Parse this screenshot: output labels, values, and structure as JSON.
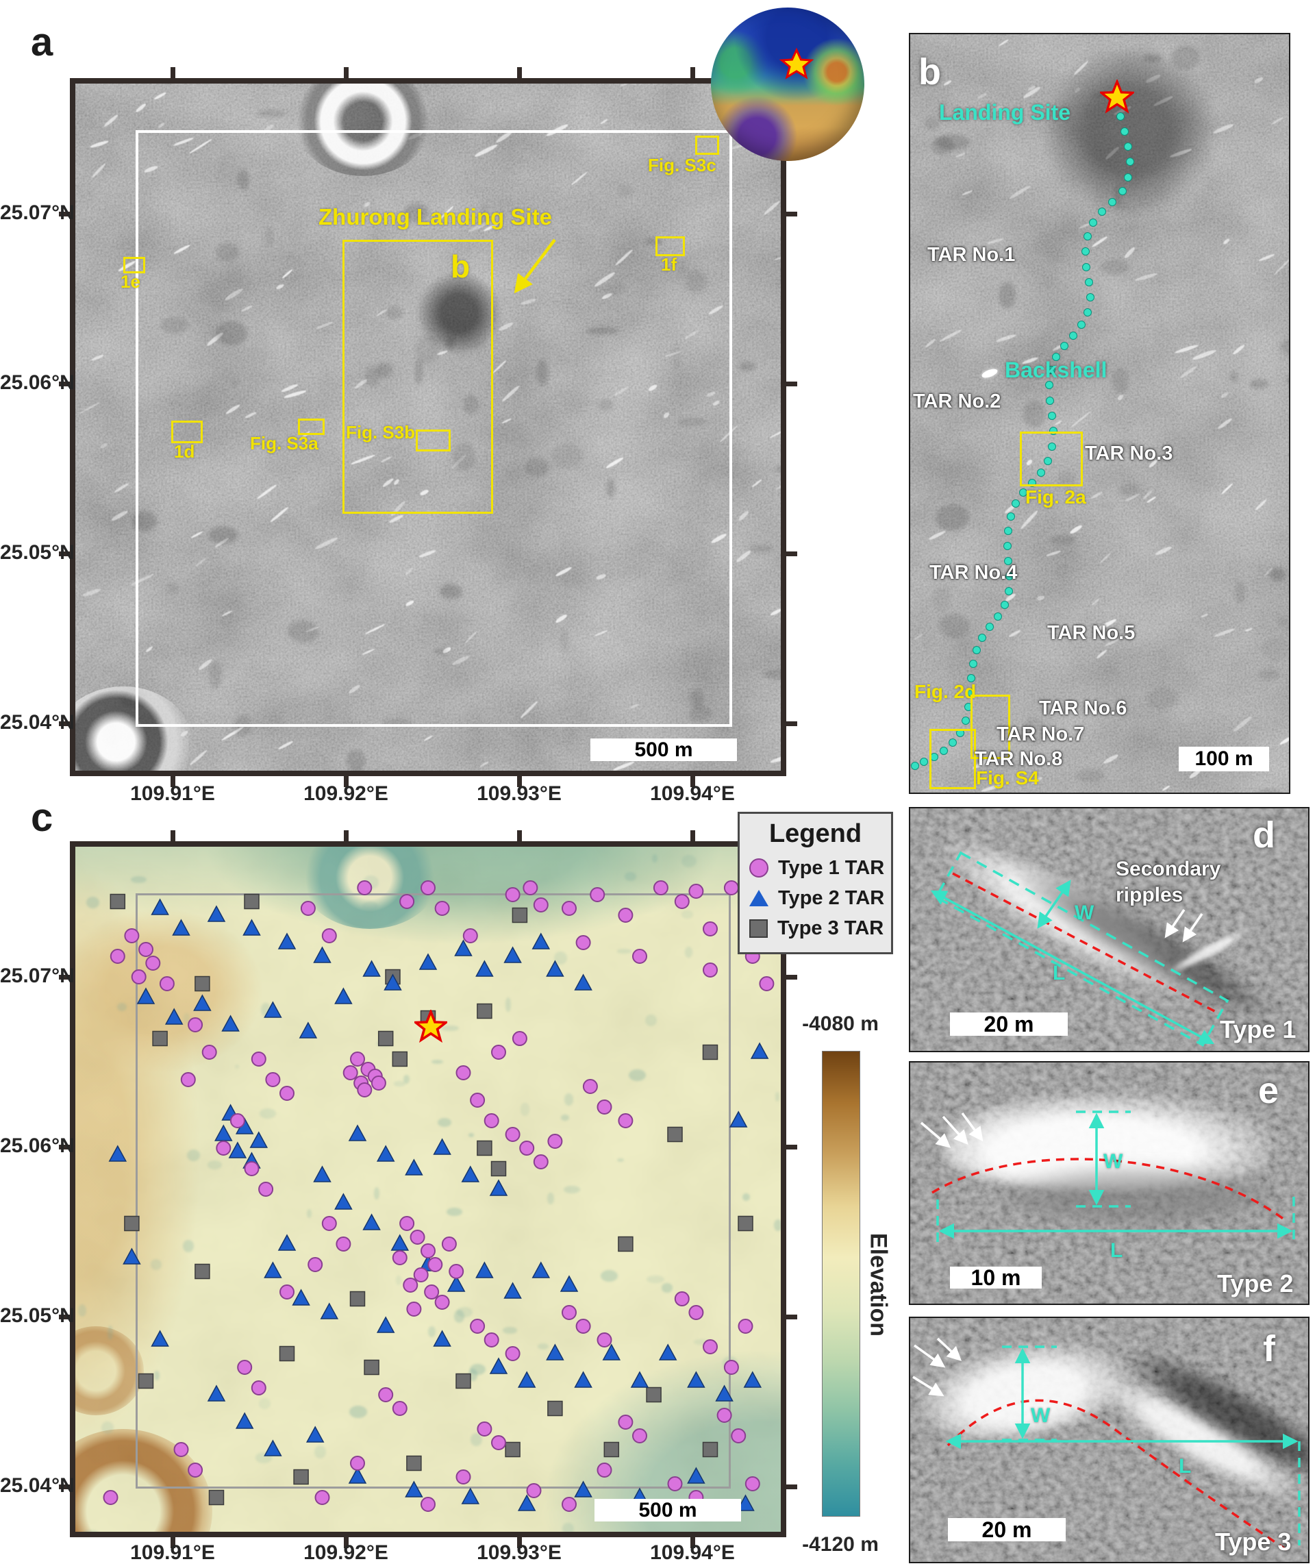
{
  "figure": {
    "description_note": ""
  },
  "panel_a": {
    "label": "a",
    "lat_ticks": [
      "25.07°N",
      "25.06°N",
      "25.05°N",
      "25.04°N"
    ],
    "lon_ticks": [
      "109.91°E",
      "109.92°E",
      "109.93°E",
      "109.94°E"
    ],
    "annotation": "Zhurong Landing Site",
    "scale_bar": "500 m",
    "boxes": {
      "b": "b",
      "e1": "1e",
      "d1": "1d",
      "s3a": "Fig. S3a",
      "s3b": "Fig. S3b",
      "s3c": "Fig. S3c",
      "f1": "1f"
    }
  },
  "panel_b": {
    "label": "b",
    "landing_site": "Landing Site",
    "backshell": "Backshell",
    "tars": [
      "TAR No.1",
      "TAR No.2",
      "TAR No.3",
      "TAR No.4",
      "TAR No.5",
      "TAR No.6",
      "TAR No.7",
      "TAR No.8"
    ],
    "fig2a": "Fig. 2a",
    "fig2d": "Fig. 2d",
    "figs4": "Fig. S4",
    "scale_bar": "100 m",
    "traverse": [
      [
        307,
        120
      ],
      [
        313,
        142
      ],
      [
        318,
        164
      ],
      [
        321,
        186
      ],
      [
        318,
        209
      ],
      [
        310,
        229
      ],
      [
        295,
        245
      ],
      [
        280,
        259
      ],
      [
        267,
        275
      ],
      [
        259,
        295
      ],
      [
        256,
        317
      ],
      [
        257,
        340
      ],
      [
        261,
        362
      ],
      [
        263,
        384
      ],
      [
        259,
        406
      ],
      [
        250,
        424
      ],
      [
        238,
        440
      ],
      [
        225,
        455
      ],
      [
        213,
        471
      ],
      [
        206,
        490
      ],
      [
        203,
        512
      ],
      [
        204,
        535
      ],
      [
        207,
        557
      ],
      [
        209,
        579
      ],
      [
        207,
        602
      ],
      [
        201,
        623
      ],
      [
        191,
        640
      ],
      [
        178,
        655
      ],
      [
        165,
        669
      ],
      [
        154,
        685
      ],
      [
        147,
        704
      ],
      [
        143,
        725
      ],
      [
        142,
        747
      ],
      [
        143,
        769
      ],
      [
        145,
        791
      ],
      [
        144,
        813
      ],
      [
        138,
        833
      ],
      [
        128,
        850
      ],
      [
        116,
        865
      ],
      [
        105,
        881
      ],
      [
        97,
        899
      ],
      [
        92,
        919
      ],
      [
        89,
        940
      ],
      [
        87,
        961
      ],
      [
        85,
        982
      ],
      [
        81,
        1002
      ],
      [
        73,
        1020
      ],
      [
        62,
        1034
      ],
      [
        49,
        1046
      ],
      [
        35,
        1055
      ],
      [
        20,
        1062
      ],
      [
        7,
        1068
      ]
    ]
  },
  "panel_c": {
    "label": "c",
    "lat_ticks": [
      "25.07°N",
      "25.06°N",
      "25.05°N",
      "25.04°N"
    ],
    "lon_ticks": [
      "109.91°E",
      "109.92°E",
      "109.93°E",
      "109.94°E"
    ],
    "scale_bar": "500 m",
    "legend": {
      "title": "Legend",
      "items": [
        {
          "label": "Type 1 TAR",
          "marker": "circle-icon",
          "color": "#d973dd"
        },
        {
          "label": "Type 2 TAR",
          "marker": "triangle-icon",
          "color": "#1e5ecc"
        },
        {
          "label": "Type 3 TAR",
          "marker": "square-icon",
          "color": "#6e6e6e"
        }
      ]
    },
    "colorbar": {
      "top": "-4080 m",
      "bottom": "-4120 m",
      "label": "Elevation",
      "stops": [
        "#6f4212",
        "#a9742f",
        "#c9a05c",
        "#e8d495",
        "#f2ecbc",
        "#dfe6b8",
        "#bcd7ae",
        "#8cc3a6",
        "#57a9a2",
        "#2f8fa0"
      ]
    },
    "markers": {
      "type1": [
        [
          62,
          7
        ],
        [
          64.5,
          6
        ],
        [
          66,
          8.5
        ],
        [
          70,
          9
        ],
        [
          74,
          7
        ],
        [
          78,
          10
        ],
        [
          83,
          6
        ],
        [
          86,
          8
        ],
        [
          88,
          6.5
        ],
        [
          90,
          12
        ],
        [
          93,
          6
        ],
        [
          95,
          9
        ],
        [
          97,
          7
        ],
        [
          72,
          14
        ],
        [
          80,
          16
        ],
        [
          90,
          18
        ],
        [
          96,
          16
        ],
        [
          98,
          20
        ],
        [
          33,
          9
        ],
        [
          36,
          13
        ],
        [
          47,
          8
        ],
        [
          50,
          6
        ],
        [
          52,
          9
        ],
        [
          56,
          13
        ],
        [
          41,
          6
        ],
        [
          8,
          13
        ],
        [
          10,
          15
        ],
        [
          11,
          17
        ],
        [
          9,
          19
        ],
        [
          13,
          20
        ],
        [
          6,
          16
        ],
        [
          17,
          26
        ],
        [
          19,
          30
        ],
        [
          16,
          34
        ],
        [
          26,
          31
        ],
        [
          28,
          34
        ],
        [
          30,
          36
        ],
        [
          23,
          40
        ],
        [
          21,
          44
        ],
        [
          25,
          47
        ],
        [
          27,
          50
        ],
        [
          40,
          31
        ],
        [
          41.5,
          32.5
        ],
        [
          42.5,
          33.5
        ],
        [
          40.5,
          34.5
        ],
        [
          39,
          33
        ],
        [
          41,
          35.5
        ],
        [
          43,
          34.5
        ],
        [
          55,
          33
        ],
        [
          57,
          37
        ],
        [
          59,
          40
        ],
        [
          62,
          42
        ],
        [
          64,
          44
        ],
        [
          66,
          46
        ],
        [
          68,
          43
        ],
        [
          73,
          35
        ],
        [
          75,
          38
        ],
        [
          78,
          40
        ],
        [
          60,
          30
        ],
        [
          63,
          28
        ],
        [
          47,
          55
        ],
        [
          48.5,
          57
        ],
        [
          50,
          59
        ],
        [
          51,
          61
        ],
        [
          49,
          62.5
        ],
        [
          47.5,
          64
        ],
        [
          50.5,
          65
        ],
        [
          52,
          66.5
        ],
        [
          48,
          67.5
        ],
        [
          46,
          60
        ],
        [
          53,
          58
        ],
        [
          54,
          62
        ],
        [
          36,
          55
        ],
        [
          38,
          58
        ],
        [
          34,
          61
        ],
        [
          30,
          65
        ],
        [
          57,
          70
        ],
        [
          59,
          72
        ],
        [
          62,
          74
        ],
        [
          70,
          68
        ],
        [
          72,
          70
        ],
        [
          75,
          72
        ],
        [
          86,
          66
        ],
        [
          88,
          68
        ],
        [
          90,
          73
        ],
        [
          93,
          76
        ],
        [
          95,
          70
        ],
        [
          24,
          76
        ],
        [
          26,
          79
        ],
        [
          44,
          80
        ],
        [
          46,
          82
        ],
        [
          58,
          85
        ],
        [
          60,
          87
        ],
        [
          78,
          84
        ],
        [
          80,
          86
        ],
        [
          92,
          83
        ],
        [
          94,
          86
        ],
        [
          40,
          90
        ],
        [
          55,
          92
        ],
        [
          65,
          94
        ],
        [
          75,
          91
        ],
        [
          85,
          93
        ],
        [
          15,
          88
        ],
        [
          17,
          91
        ],
        [
          5,
          95
        ],
        [
          35,
          95
        ],
        [
          50,
          96
        ],
        [
          70,
          96
        ],
        [
          88,
          95
        ],
        [
          96,
          93
        ]
      ],
      "type2": [
        [
          12,
          9
        ],
        [
          15,
          12
        ],
        [
          20,
          10
        ],
        [
          25,
          12
        ],
        [
          30,
          14
        ],
        [
          35,
          16
        ],
        [
          10,
          22
        ],
        [
          14,
          25
        ],
        [
          18,
          23
        ],
        [
          22,
          26
        ],
        [
          28,
          24
        ],
        [
          33,
          27
        ],
        [
          38,
          22
        ],
        [
          42,
          18
        ],
        [
          45,
          20
        ],
        [
          50,
          17
        ],
        [
          55,
          15
        ],
        [
          58,
          18
        ],
        [
          62,
          16
        ],
        [
          66,
          14
        ],
        [
          68,
          18
        ],
        [
          72,
          20
        ],
        [
          22,
          39
        ],
        [
          24,
          41
        ],
        [
          26,
          43
        ],
        [
          23,
          44.5
        ],
        [
          25,
          46
        ],
        [
          21,
          42
        ],
        [
          40,
          42
        ],
        [
          44,
          45
        ],
        [
          48,
          47
        ],
        [
          52,
          44
        ],
        [
          56,
          48
        ],
        [
          60,
          50
        ],
        [
          35,
          48
        ],
        [
          38,
          52
        ],
        [
          42,
          55
        ],
        [
          46,
          58
        ],
        [
          50,
          61
        ],
        [
          54,
          64
        ],
        [
          58,
          62
        ],
        [
          62,
          65
        ],
        [
          66,
          62
        ],
        [
          70,
          64
        ],
        [
          30,
          58
        ],
        [
          28,
          62
        ],
        [
          32,
          66
        ],
        [
          36,
          68
        ],
        [
          44,
          70
        ],
        [
          52,
          72
        ],
        [
          60,
          76
        ],
        [
          64,
          78
        ],
        [
          68,
          74
        ],
        [
          72,
          78
        ],
        [
          76,
          74
        ],
        [
          80,
          78
        ],
        [
          84,
          74
        ],
        [
          88,
          78
        ],
        [
          92,
          80
        ],
        [
          96,
          78
        ],
        [
          20,
          80
        ],
        [
          24,
          84
        ],
        [
          28,
          88
        ],
        [
          34,
          86
        ],
        [
          40,
          92
        ],
        [
          48,
          94
        ],
        [
          56,
          95
        ],
        [
          64,
          96
        ],
        [
          72,
          94
        ],
        [
          80,
          95
        ],
        [
          88,
          92
        ],
        [
          95,
          96
        ],
        [
          12,
          72
        ],
        [
          8,
          60
        ],
        [
          6,
          45
        ],
        [
          97,
          30
        ],
        [
          94,
          40
        ]
      ],
      "type3": [
        [
          6,
          8
        ],
        [
          25,
          8
        ],
        [
          18,
          20
        ],
        [
          45,
          19
        ],
        [
          58,
          24
        ],
        [
          12,
          28
        ],
        [
          44,
          28
        ],
        [
          46,
          31
        ],
        [
          58,
          44
        ],
        [
          60,
          47
        ],
        [
          8,
          55
        ],
        [
          18,
          62
        ],
        [
          40,
          66
        ],
        [
          90,
          30
        ],
        [
          85,
          42
        ],
        [
          95,
          55
        ],
        [
          78,
          58
        ],
        [
          30,
          74
        ],
        [
          42,
          76
        ],
        [
          55,
          78
        ],
        [
          68,
          82
        ],
        [
          82,
          80
        ],
        [
          20,
          95
        ],
        [
          32,
          92
        ],
        [
          48,
          90
        ],
        [
          62,
          88
        ],
        [
          76,
          88
        ],
        [
          90,
          88
        ],
        [
          10,
          78
        ],
        [
          50,
          25
        ],
        [
          63,
          10
        ]
      ]
    }
  },
  "panel_d": {
    "label": "d",
    "caption": "Type 1",
    "scale_bar": "20 m",
    "annotation_line1": "Secondary",
    "annotation_line2": "ripples",
    "w": "W",
    "l": "L"
  },
  "panel_e": {
    "label": "e",
    "caption": "Type 2",
    "scale_bar": "10 m",
    "w": "W",
    "l": "L"
  },
  "panel_f": {
    "label": "f",
    "caption": "Type 3",
    "scale_bar": "20 m",
    "w": "W",
    "l": "L"
  }
}
